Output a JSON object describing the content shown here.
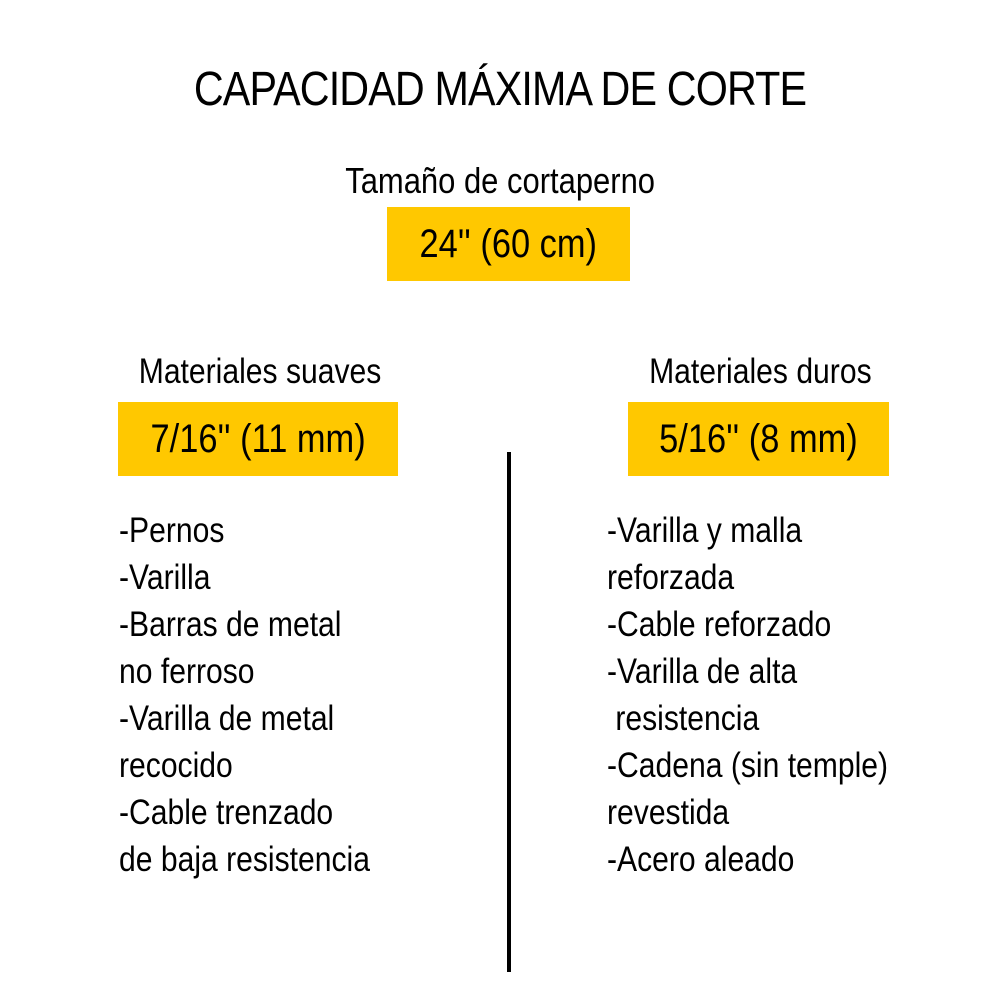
{
  "title": "CAPACIDAD MÁXIMA DE CORTE",
  "size_label": "Tamaño de cortaperno",
  "size_value": "24'' (60 cm)",
  "accent_color": "#FFC800",
  "soft": {
    "heading": "Materiales suaves",
    "value": "7/16'' (11 mm)",
    "items": [
      "-Pernos",
      "-Varilla",
      "-Barras de metal",
      "no ferroso",
      "-Varilla de metal",
      "recocido",
      "-Cable trenzado",
      "de baja resistencia"
    ]
  },
  "hard": {
    "heading": "Materiales duros",
    "value": "5/16'' (8 mm)",
    "items": [
      "-Varilla y malla",
      "reforzada",
      "-Cable reforzado",
      "-Varilla de alta",
      " resistencia",
      "-Cadena (sin temple)",
      "revestida",
      "-Acero aleado"
    ]
  }
}
